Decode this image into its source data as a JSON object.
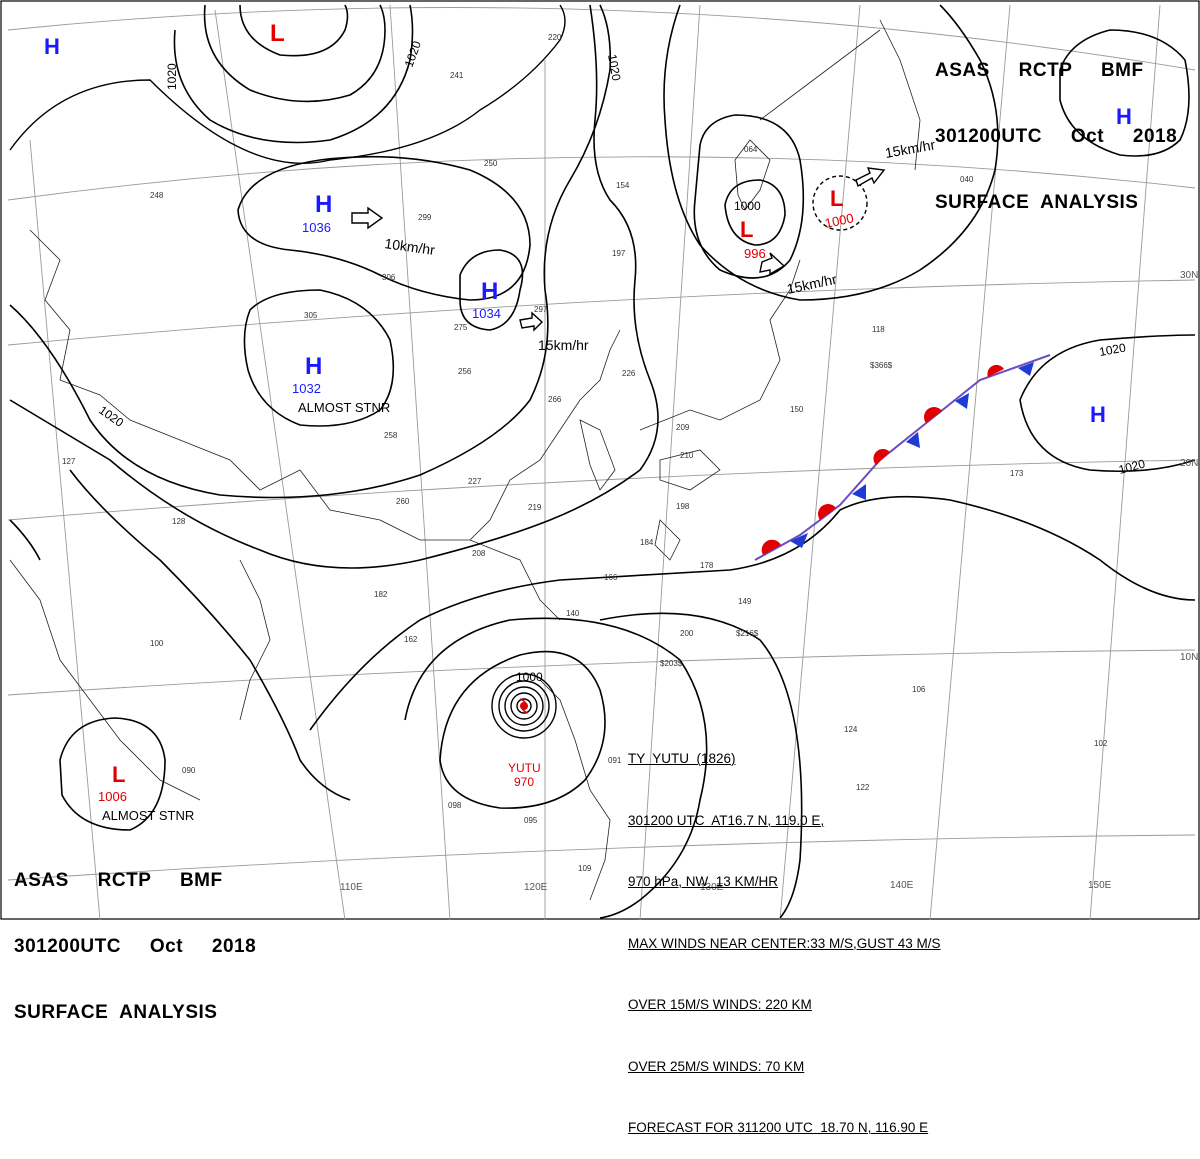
{
  "header": {
    "line1": "ASAS     RCTP     BMF",
    "line2": "301200UTC     Oct     2018",
    "line3": "SURFACE  ANALYSIS"
  },
  "header_bottom": {
    "line1": "ASAS     RCTP     BMF",
    "line2": "301200UTC     Oct     2018",
    "line3": "SURFACE  ANALYSIS"
  },
  "colors": {
    "high": "#1a1aff",
    "low": "#e00000",
    "front_warm": "#e00000",
    "front_cold": "#1f3bd6",
    "ink": "#000000",
    "grid": "#8a8a8a"
  },
  "pressure_systems": [
    {
      "type": "H",
      "value": "1036"
    },
    {
      "type": "H",
      "value": "1034"
    },
    {
      "type": "H",
      "value": "1032",
      "note": "ALMOST STNR"
    },
    {
      "type": "H",
      "value": ""
    },
    {
      "type": "H",
      "value": ""
    },
    {
      "type": "H",
      "value": ""
    },
    {
      "type": "L",
      "value": ""
    },
    {
      "type": "L",
      "value": "996"
    },
    {
      "type": "L",
      "value": "1000"
    },
    {
      "type": "L",
      "value": "1006",
      "note": "ALMOST STNR"
    }
  ],
  "isobar_labels": [
    "1020",
    "1020",
    "1020",
    "1020",
    "1000",
    "1020",
    "1020",
    "1000"
  ],
  "motion_vectors": [
    "10km/hr",
    "15km/hr",
    "15km/hr",
    "15km/hr"
  ],
  "lat_labels": [
    "30N",
    "20N",
    "10N"
  ],
  "lon_labels": [
    "110E",
    "120E",
    "130E",
    "140E",
    "150E"
  ],
  "typhoon": {
    "storm_label": "YUTU",
    "storm_pressure": "970",
    "lines": [
      "TY  YUTU  (1826)",
      "301200 UTC  AT16.7 N, 119.0 E,",
      "970 hPa, NW  13 KM/HR",
      "MAX WINDS NEAR CENTER:33 M/S,GUST 43 M/S",
      "OVER 15M/S WINDS: 220 KM",
      "OVER 25M/S WINDS: 70 KM",
      "FORECAST FOR 311200 UTC  18.70 N, 116.90 E"
    ]
  },
  "station_obs": [
    "220",
    "241",
    "250",
    "248",
    "299",
    "306",
    "305",
    "275",
    "297",
    "256",
    "266",
    "258",
    "227",
    "260",
    "219",
    "208",
    "197",
    "166",
    "149",
    "182",
    "162",
    "140",
    "127",
    "128",
    "100",
    "098",
    "095",
    "109",
    "200",
    "184",
    "178",
    "198",
    "173",
    "150",
    "118",
    "106",
    "064",
    "040",
    "154",
    "226",
    "209",
    "210",
    "124",
    "122",
    "102",
    "091",
    "090",
    "$366$",
    "$216$",
    "$203$"
  ]
}
